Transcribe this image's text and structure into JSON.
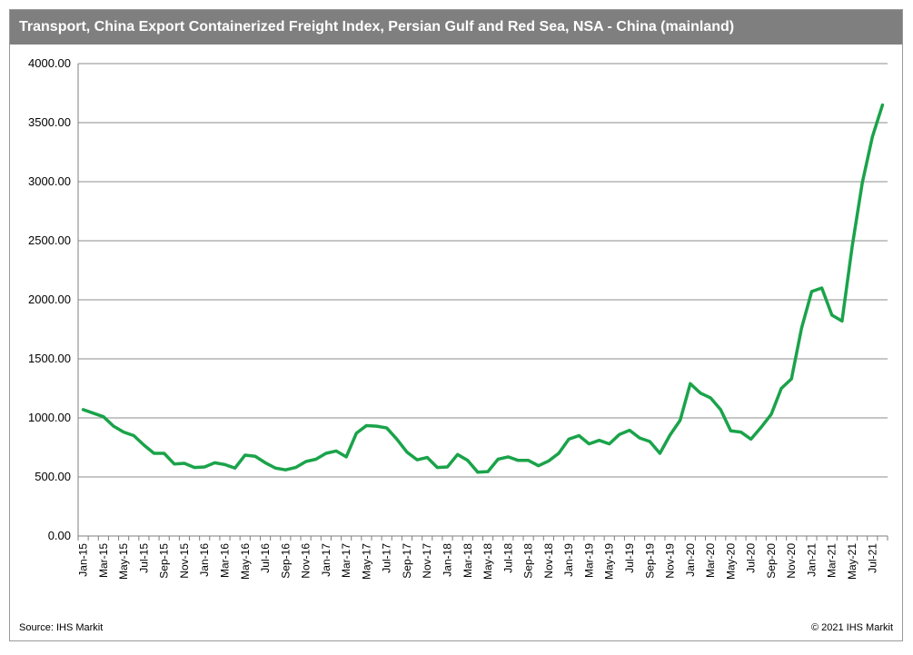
{
  "chart_data": {
    "type": "line",
    "title": "Transport, China Export Containerized Freight Index, Persian Gulf and Red Sea, NSA - China (mainland)",
    "xlabel": "",
    "ylabel": "",
    "ylim": [
      0,
      4000
    ],
    "yticks": [
      "0.00",
      "500.00",
      "1000.00",
      "1500.00",
      "2000.00",
      "2500.00",
      "3000.00",
      "3500.00",
      "4000.00"
    ],
    "grid": true,
    "legend": "none",
    "tick_labels": [
      "Jan-15",
      "Mar-15",
      "May-15",
      "Jul-15",
      "Sep-15",
      "Nov-15",
      "Jan-16",
      "Mar-16",
      "May-16",
      "Jul-16",
      "Sep-16",
      "Nov-16",
      "Jan-17",
      "Mar-17",
      "May-17",
      "Jul-17",
      "Sep-17",
      "Nov-17",
      "Jan-18",
      "Mar-18",
      "May-18",
      "Jul-18",
      "Sep-18",
      "Nov-18",
      "Jan-19",
      "Mar-19",
      "May-19",
      "Jul-19",
      "Sep-19",
      "Nov-19",
      "Jan-20",
      "Mar-20",
      "May-20",
      "Jul-20",
      "Sep-20",
      "Nov-20",
      "Jan-21",
      "Mar-21",
      "May-21",
      "Jul-21"
    ],
    "series": [
      {
        "name": "China Export Containerized Freight Index, Persian Gulf and Red Sea",
        "color": "#1aa34a",
        "values": [
          1070,
          1040,
          1010,
          930,
          880,
          850,
          770,
          700,
          700,
          610,
          615,
          580,
          585,
          620,
          605,
          575,
          685,
          675,
          620,
          575,
          560,
          580,
          630,
          650,
          700,
          720,
          670,
          870,
          935,
          930,
          915,
          820,
          710,
          645,
          665,
          580,
          585,
          690,
          640,
          540,
          545,
          650,
          670,
          640,
          640,
          595,
          635,
          700,
          820,
          850,
          780,
          810,
          780,
          860,
          895,
          830,
          800,
          700,
          855,
          980,
          1290,
          1210,
          1170,
          1070,
          890,
          880,
          820,
          920,
          1030,
          1250,
          1330,
          1760,
          2070,
          2100,
          1870,
          1820,
          2450,
          2990,
          3380,
          3650
        ]
      }
    ]
  },
  "footer": {
    "source": "Source: IHS Markit",
    "copyright": "© 2021 IHS Markit"
  }
}
